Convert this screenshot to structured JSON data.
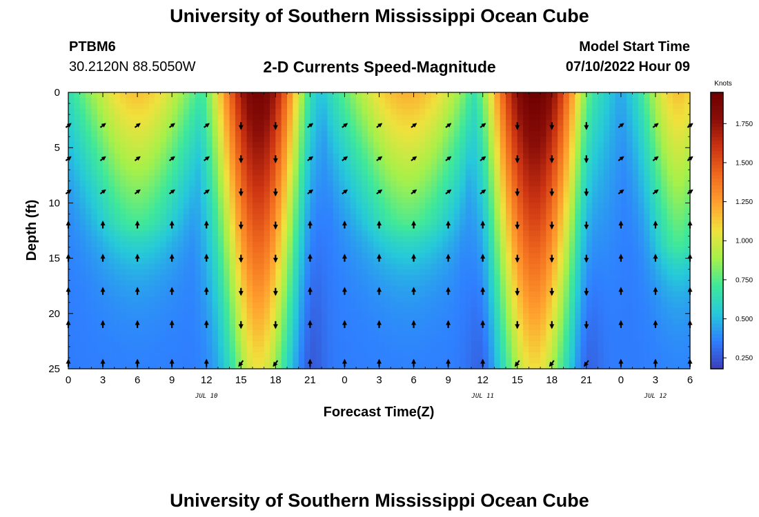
{
  "header": {
    "title": "University of Southern Mississippi Ocean Cube",
    "station_id": "PTBM6",
    "station_coords": "30.2120N  88.5050W",
    "plot_subtitle": "2-D Currents Speed-Magnitude",
    "model_start_label": "Model Start Time",
    "model_start_value": "07/10/2022 Hour 09"
  },
  "footer": {
    "title": "University of Southern Mississippi Ocean Cube"
  },
  "chart_data": {
    "type": "heatmap",
    "title": "2-D Currents Speed-Magnitude",
    "xlabel": "Forecast Time(Z)",
    "ylabel": "Depth (ft)",
    "x_ticks": [
      "0",
      "3",
      "6",
      "9",
      "12",
      "15",
      "18",
      "21",
      "0",
      "3",
      "6",
      "9",
      "12",
      "15",
      "18",
      "21",
      "0",
      "3",
      "6"
    ],
    "x_range_hours": [
      0,
      54
    ],
    "date_labels": [
      {
        "label": "JUL 10",
        "hour": 12
      },
      {
        "label": "JUL 11",
        "hour": 36
      },
      {
        "label": "JUL 12",
        "hour": 51
      }
    ],
    "y_ticks": [
      "0",
      "5",
      "10",
      "15",
      "20",
      "25"
    ],
    "y_range_ft": [
      0,
      25
    ],
    "colorbar": {
      "title": "Knots",
      "ticks": [
        "0.250",
        "0.500",
        "0.750",
        "1.000",
        "1.250",
        "1.500",
        "1.750"
      ],
      "range": [
        0.18,
        1.95
      ],
      "colors": [
        "#3d3dba",
        "#2f7fff",
        "#26c9d9",
        "#3fe89a",
        "#a6f04a",
        "#f0e13d",
        "#ffa02e",
        "#f06a1e",
        "#cc3412",
        "#8a0e08",
        "#6e0000"
      ]
    },
    "speed_model": {
      "high_periods": [
        {
          "name": "ebb-1",
          "center_hour": 16.5,
          "half_width_hours": 4.0,
          "peak_knots": 1.9,
          "depth_extent_ft": 25
        },
        {
          "name": "ebb-2",
          "center_hour": 40.5,
          "half_width_hours": 4.5,
          "peak_knots": 1.95,
          "depth_extent_ft": 25
        },
        {
          "name": "flood-1",
          "center_hour": 6.0,
          "half_width_hours": 6.0,
          "peak_knots": 1.15,
          "depth_extent_ft": 12
        },
        {
          "name": "flood-2",
          "center_hour": 29.5,
          "half_width_hours": 6.5,
          "peak_knots": 1.2,
          "depth_extent_ft": 12
        },
        {
          "name": "flood-3",
          "center_hour": 53.0,
          "half_width_hours": 3.5,
          "peak_knots": 1.15,
          "depth_extent_ft": 14
        }
      ],
      "background_knots": 0.35,
      "low_minima_hours": [
        21,
        36,
        45
      ]
    },
    "vectors": {
      "hours": [
        0,
        3,
        6,
        9,
        12,
        15,
        18,
        21,
        24,
        27,
        30,
        33,
        36,
        39,
        42,
        45,
        48,
        51,
        54
      ],
      "depths_ft": [
        3,
        6,
        9,
        12,
        15,
        18,
        21,
        24.5
      ],
      "direction_bands": [
        {
          "from_hour": 0,
          "to_hour": 13,
          "upper_dir": "north-east",
          "lower_dir": "north"
        },
        {
          "from_hour": 13,
          "to_hour": 20,
          "upper_dir": "south",
          "lower_dir": "south-west"
        },
        {
          "from_hour": 20,
          "to_hour": 37,
          "upper_dir": "north-east",
          "lower_dir": "north"
        },
        {
          "from_hour": 37,
          "to_hour": 46,
          "upper_dir": "south",
          "lower_dir": "south-west"
        },
        {
          "from_hour": 46,
          "to_hour": 54,
          "upper_dir": "north-east",
          "lower_dir": "north"
        }
      ]
    }
  }
}
